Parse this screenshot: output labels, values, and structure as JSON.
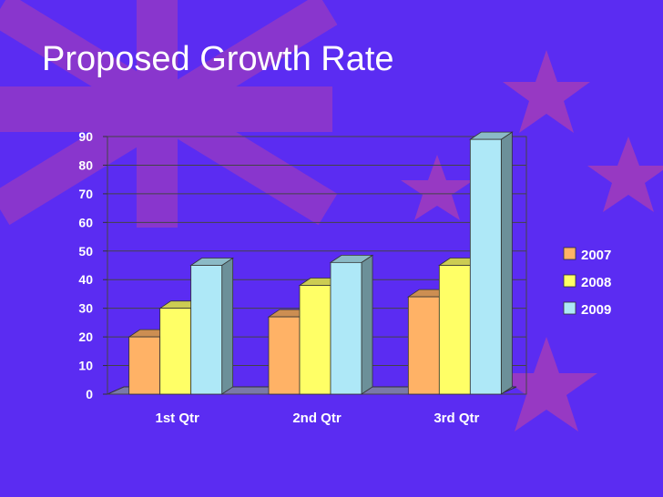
{
  "slide": {
    "title": "Proposed Growth Rate",
    "background_color": "#5b2cf2"
  },
  "chart_data": {
    "type": "bar",
    "title": "",
    "xlabel": "",
    "ylabel": "",
    "categories": [
      "1st Qtr",
      "2nd Qtr",
      "3rd Qtr"
    ],
    "series": [
      {
        "name": "2007",
        "values": [
          20,
          27,
          34
        ],
        "color": "#ffb266"
      },
      {
        "name": "2008",
        "values": [
          30,
          38,
          45
        ],
        "color": "#ffff66"
      },
      {
        "name": "2009",
        "values": [
          45,
          46,
          89
        ],
        "color": "#aee8f7"
      }
    ],
    "ylim": [
      0,
      90
    ],
    "yticks": [
      "0",
      "10",
      "20",
      "30",
      "40",
      "50",
      "60",
      "70",
      "80",
      "90"
    ],
    "grid": true,
    "legend_position": "right",
    "style": "3d-clustered-column"
  }
}
